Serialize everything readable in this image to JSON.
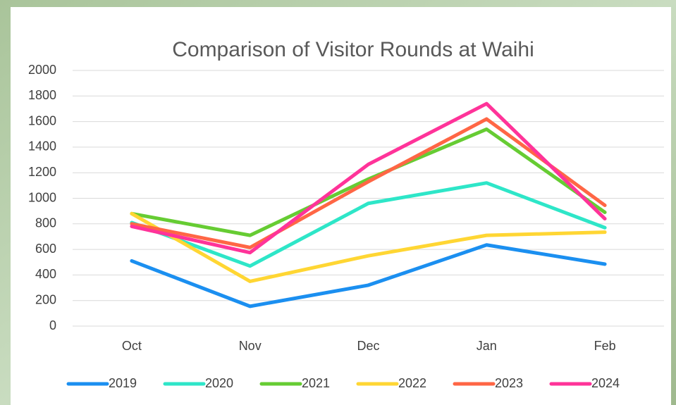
{
  "chart_data": {
    "type": "line",
    "title": "Comparison of Visitor Rounds at Waihi",
    "categories": [
      "Oct",
      "Nov",
      "Dec",
      "Jan",
      "Feb"
    ],
    "series": [
      {
        "name": "2019",
        "color": "#1b8ff0",
        "values": [
          510,
          155,
          320,
          635,
          485
        ]
      },
      {
        "name": "2020",
        "color": "#2ee6c8",
        "values": [
          810,
          470,
          960,
          1120,
          770
        ]
      },
      {
        "name": "2021",
        "color": "#66cc33",
        "values": [
          880,
          710,
          1150,
          1540,
          890
        ]
      },
      {
        "name": "2022",
        "color": "#ffd633",
        "values": [
          880,
          350,
          550,
          710,
          735
        ]
      },
      {
        "name": "2023",
        "color": "#ff6645",
        "values": [
          800,
          615,
          1130,
          1620,
          945
        ]
      },
      {
        "name": "2024",
        "color": "#ff3399",
        "values": [
          780,
          575,
          1265,
          1740,
          840
        ]
      }
    ],
    "ylim": [
      0,
      2000
    ],
    "yticks": [
      0,
      200,
      400,
      600,
      800,
      1000,
      1200,
      1400,
      1600,
      1800,
      2000
    ],
    "grid": true,
    "legend": "bottom"
  }
}
